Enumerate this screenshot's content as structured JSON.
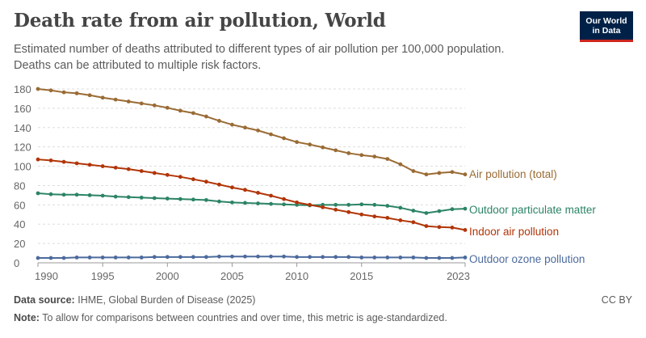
{
  "header": {
    "title": "Death rate from air pollution, World",
    "subtitle_line1": "Estimated number of deaths attributed to different types of air pollution per 100,000 population.",
    "subtitle_line2": "Deaths can be attributed to multiple risk factors.",
    "logo_line1": "Our World",
    "logo_line2": "in Data"
  },
  "footer": {
    "source_label": "Data source:",
    "source_text": "IHME, Global Burden of Disease (2025)",
    "note_label": "Note:",
    "note_text": "To allow for comparisons between countries and over time, this metric is age-standardized.",
    "license": "CC BY"
  },
  "chart_data": {
    "type": "line",
    "title": "Death rate from air pollution, World",
    "xlim": [
      1990,
      2023
    ],
    "ylim": [
      0,
      180
    ],
    "yticks": [
      0,
      20,
      40,
      60,
      80,
      100,
      120,
      140,
      160,
      180
    ],
    "xticks": [
      1990,
      1995,
      2000,
      2005,
      2010,
      2015,
      2023
    ],
    "grid": "horizontal dashed",
    "legend": "right, inline labels",
    "x": [
      1990,
      1991,
      1992,
      1993,
      1994,
      1995,
      1996,
      1997,
      1998,
      1999,
      2000,
      2001,
      2002,
      2003,
      2004,
      2005,
      2006,
      2007,
      2008,
      2009,
      2010,
      2011,
      2012,
      2013,
      2014,
      2015,
      2016,
      2017,
      2018,
      2019,
      2020,
      2021,
      2022,
      2023
    ],
    "series": [
      {
        "name": "Air pollution (total)",
        "color": "#9a6b34",
        "values": [
          180,
          178.5,
          176.5,
          175.5,
          173.5,
          171,
          169,
          167,
          165,
          163,
          160.5,
          157.5,
          155,
          151.5,
          147,
          143,
          140,
          137,
          133,
          129,
          125,
          122.5,
          119.5,
          116.5,
          113.5,
          111.5,
          110,
          107.5,
          102,
          95,
          91.5,
          93,
          94,
          91.5
        ]
      },
      {
        "name": "Outdoor particulate matter",
        "color": "#2c8465",
        "values": [
          72,
          71,
          70.5,
          70.5,
          70,
          69.5,
          68.5,
          68,
          67.5,
          67,
          66.5,
          66,
          65.5,
          65,
          63.5,
          62.5,
          62,
          61.5,
          61,
          60.5,
          60,
          59.5,
          60,
          60,
          60,
          60.5,
          60,
          59,
          57,
          54,
          51.5,
          53.5,
          55.5,
          56
        ]
      },
      {
        "name": "Indoor air pollution",
        "color": "#b13507",
        "values": [
          107,
          106,
          104.5,
          103,
          101.5,
          100,
          98.5,
          97,
          95,
          93,
          91,
          89,
          86.5,
          84,
          81,
          78,
          75.5,
          72.5,
          69.5,
          66,
          62.5,
          60,
          57.5,
          55,
          52.5,
          50,
          48,
          46.5,
          44,
          42,
          38,
          37,
          36.5,
          34
        ]
      },
      {
        "name": "Outdoor ozone pollution",
        "color": "#4c6a9c",
        "values": [
          5,
          5,
          5,
          5.5,
          5.5,
          5.5,
          5.5,
          5.5,
          5.5,
          6,
          6,
          6,
          6,
          6,
          6.5,
          6.5,
          6.5,
          6.5,
          6.5,
          6.5,
          6,
          6,
          6,
          6,
          6,
          5.5,
          5.5,
          5.5,
          5.5,
          5.5,
          5,
          5,
          5,
          5.5
        ]
      }
    ]
  }
}
